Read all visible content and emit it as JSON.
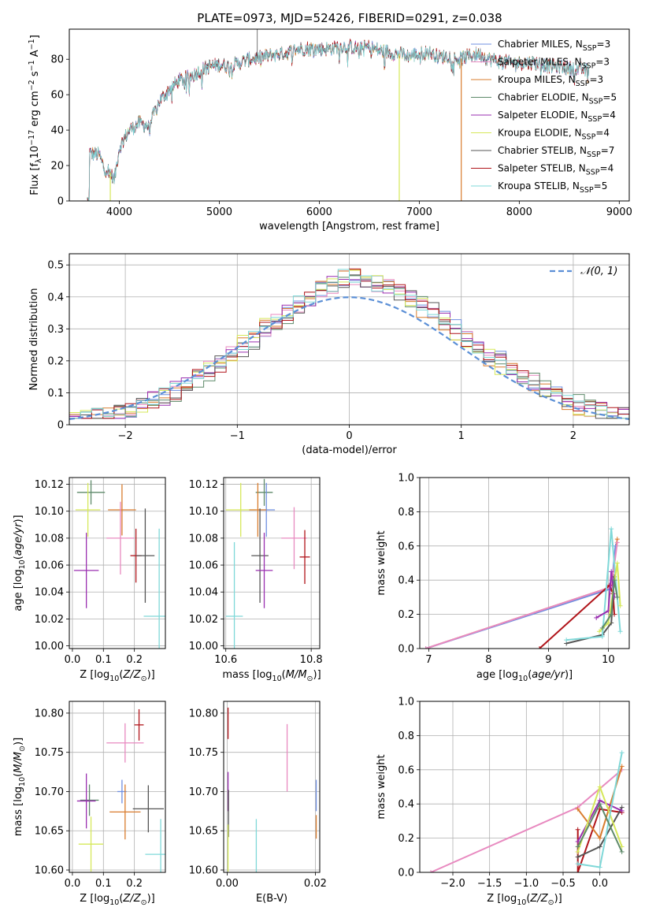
{
  "figure": {
    "title": "PLATE=0973, MJD=52426, FIBERID=0291, z=0.038"
  },
  "colors": {
    "chabrier_miles": "#6f8fe0",
    "salpeter_miles": "#e88ac0",
    "kroupa_miles": "#d97c2e",
    "chabrier_elodie": "#5e8a6a",
    "salpeter_elodie": "#9a2fb0",
    "kroupa_elodie": "#d6e85a",
    "chabrier_stelib": "#555555",
    "salpeter_stelib": "#b0141a",
    "kroupa_stelib": "#7fd8d8",
    "gaussian": "#5b8fd6"
  },
  "legend_spectrum": [
    "Chabrier MILES, N_SSP=3",
    "Salpeter MILES, N_SSP=3",
    "Kroupa MILES, N_SSP=3",
    "Chabrier ELODIE, N_SSP=5",
    "Salpeter ELODIE, N_SSP=4",
    "Kroupa ELODIE, N_SSP=4",
    "Chabrier STELIB, N_SSP=7",
    "Salpeter STELIB, N_SSP=4",
    "Kroupa STELIB, N_SSP=5"
  ],
  "legend_hist": "𝒩(0, 1)",
  "chart_data": [
    {
      "id": "spectrum",
      "type": "line",
      "xlabel": "wavelength [Angstrom, rest frame]",
      "ylabel": "Flux [f_λ 10^-17 erg cm^-2 s^-1 A^-1]",
      "xlim": [
        3500,
        9100
      ],
      "ylim": [
        0,
        97
      ],
      "xticks": [
        4000,
        5000,
        6000,
        7000,
        8000,
        9000
      ],
      "yticks": [
        0,
        20,
        40,
        60,
        80
      ],
      "continuum": [
        [
          3700,
          27
        ],
        [
          3800,
          26
        ],
        [
          3850,
          18
        ],
        [
          3900,
          17
        ],
        [
          3950,
          12
        ],
        [
          4000,
          30
        ],
        [
          4100,
          40
        ],
        [
          4200,
          44
        ],
        [
          4300,
          42
        ],
        [
          4350,
          50
        ],
        [
          4400,
          56
        ],
        [
          4500,
          63
        ],
        [
          4600,
          68
        ],
        [
          4700,
          70
        ],
        [
          4800,
          73
        ],
        [
          4900,
          76
        ],
        [
          5000,
          77
        ],
        [
          5100,
          76
        ],
        [
          5200,
          78
        ],
        [
          5300,
          80
        ],
        [
          5400,
          81
        ],
        [
          5500,
          82
        ],
        [
          5600,
          83
        ],
        [
          5700,
          84
        ],
        [
          5800,
          86
        ],
        [
          5900,
          86
        ],
        [
          6000,
          86
        ],
        [
          6100,
          86
        ],
        [
          6200,
          87
        ],
        [
          6300,
          87
        ],
        [
          6400,
          86
        ],
        [
          6500,
          87
        ],
        [
          6600,
          85
        ],
        [
          6700,
          84
        ],
        [
          6800,
          83
        ],
        [
          6900,
          82
        ],
        [
          7000,
          83
        ],
        [
          7100,
          84
        ],
        [
          7200,
          81
        ],
        [
          7300,
          82
        ],
        [
          7400,
          80
        ],
        [
          7500,
          82
        ],
        [
          7600,
          83
        ],
        [
          7700,
          80
        ],
        [
          7800,
          79
        ],
        [
          7900,
          78
        ],
        [
          8000,
          78
        ],
        [
          8100,
          78
        ],
        [
          8200,
          78
        ],
        [
          8300,
          76
        ],
        [
          8400,
          76
        ],
        [
          8500,
          75
        ],
        [
          8600,
          74
        ],
        [
          8700,
          74
        ]
      ],
      "drops": [
        [
          3910,
          0,
          "kroupa_elodie"
        ],
        [
          6800,
          0,
          "kroupa_elodie"
        ],
        [
          7420,
          0,
          "kroupa_miles"
        ]
      ],
      "spike": [
        5380,
        110
      ]
    },
    {
      "id": "residuals",
      "type": "histogram",
      "xlabel": "(data-model)/error",
      "ylabel": "Normed distribution",
      "xlim": [
        -2.5,
        2.5
      ],
      "ylim": [
        0,
        0.535
      ],
      "xticks": [
        -2,
        -1,
        0,
        1,
        2
      ],
      "yticks": [
        0.0,
        0.1,
        0.2,
        0.3,
        0.4,
        0.5
      ]
    },
    {
      "id": "age-vs-Z",
      "type": "scatter",
      "xlabel": "Z [log10(Z/Z⊙)]",
      "ylabel": "age  [log10(age/yr)]",
      "xlim": [
        -0.01,
        0.3
      ],
      "ylim": [
        9.998,
        10.125
      ],
      "xticks": [
        "0.0",
        "0.1",
        "0.2"
      ],
      "yticks": [
        "10.00",
        "10.02",
        "10.04",
        "10.06",
        "10.08",
        "10.10",
        "10.12"
      ],
      "points": [
        {
          "s": "chabrier_elodie",
          "x": 0.06,
          "y": 10.114,
          "ex": 0.045,
          "ey": 0.009
        },
        {
          "s": "kroupa_miles",
          "x": 0.16,
          "y": 10.101,
          "ex": 0.045,
          "ey": 0.019
        },
        {
          "s": "kroupa_elodie",
          "x": 0.05,
          "y": 10.101,
          "ex": 0.04,
          "ey": 0.02
        },
        {
          "s": "salpeter_miles",
          "x": 0.155,
          "y": 10.08,
          "ex": 0.045,
          "ey": 0.027
        },
        {
          "s": "salpeter_stelib",
          "x": 0.205,
          "y": 10.067,
          "ex": 0.018,
          "ey": 0.02
        },
        {
          "s": "chabrier_stelib",
          "x": 0.235,
          "y": 10.067,
          "ex": 0.03,
          "ey": 0.035
        },
        {
          "s": "salpeter_elodie",
          "x": 0.045,
          "y": 10.056,
          "ex": 0.04,
          "ey": 0.028
        },
        {
          "s": "kroupa_stelib",
          "x": 0.28,
          "y": 10.022,
          "ex": 0.05,
          "ey": 0.065
        }
      ]
    },
    {
      "id": "age-vs-mass",
      "type": "scatter",
      "xlabel": "mass [log10(M/M⊙)]",
      "ylabel": "",
      "xlim": [
        10.595,
        10.82
      ],
      "ylim": [
        9.998,
        10.125
      ],
      "xticks": [
        "10.6",
        "10.8"
      ],
      "yticks": [
        "10.00",
        "10.02",
        "10.04",
        "10.06",
        "10.08",
        "10.10",
        "10.12"
      ],
      "points": [
        {
          "s": "chabrier_elodie",
          "x": 10.69,
          "y": 10.114,
          "ex": 0.02,
          "ey": 0.01
        },
        {
          "s": "chabrier_miles",
          "x": 10.695,
          "y": 10.101,
          "ex": 0.02,
          "ey": 0.02
        },
        {
          "s": "kroupa_elodie",
          "x": 10.635,
          "y": 10.101,
          "ex": 0.035,
          "ey": 0.02
        },
        {
          "s": "kroupa_miles",
          "x": 10.675,
          "y": 10.101,
          "ex": 0.02,
          "ey": 0.02
        },
        {
          "s": "salpeter_miles",
          "x": 10.76,
          "y": 10.08,
          "ex": 0.03,
          "ey": 0.023
        },
        {
          "s": "chabrier_stelib",
          "x": 10.68,
          "y": 10.067,
          "ex": 0.02,
          "ey": 0.035
        },
        {
          "s": "salpeter_stelib",
          "x": 10.785,
          "y": 10.066,
          "ex": 0.012,
          "ey": 0.02
        },
        {
          "s": "salpeter_elodie",
          "x": 10.69,
          "y": 10.056,
          "ex": 0.02,
          "ey": 0.028
        },
        {
          "s": "kroupa_stelib",
          "x": 10.62,
          "y": 10.022,
          "ex": 0.02,
          "ey": 0.055
        }
      ]
    },
    {
      "id": "weight-vs-age",
      "type": "line",
      "xlabel": "age  [log10(age/yr)]",
      "ylabel": "mass weight",
      "xlim": [
        6.85,
        10.35
      ],
      "ylim": [
        0,
        1
      ],
      "xticks": [
        "7",
        "8",
        "9",
        "10"
      ],
      "yticks": [
        "0.0",
        "0.2",
        "0.4",
        "0.6",
        "0.8",
        "1.0"
      ]
    },
    {
      "id": "mass-vs-Z",
      "type": "scatter",
      "xlabel": "Z [log10(Z/Z⊙)]",
      "ylabel": "mass [log10(M/M⊙)]",
      "xlim": [
        -0.01,
        0.3
      ],
      "ylim": [
        10.597,
        10.815
      ],
      "xticks": [
        "0.0",
        "0.1",
        "0.2"
      ],
      "yticks": [
        "10.60",
        "10.65",
        "10.70",
        "10.75",
        "10.80"
      ],
      "points": [
        {
          "s": "salpeter_stelib",
          "x": 0.215,
          "y": 10.785,
          "ex": 0.015,
          "ey": 0.02
        },
        {
          "s": "salpeter_miles",
          "x": 0.17,
          "y": 10.762,
          "ex": 0.06,
          "ey": 0.025
        },
        {
          "s": "chabrier_miles",
          "x": 0.16,
          "y": 10.7,
          "ex": 0.015,
          "ey": 0.015
        },
        {
          "s": "chabrier_elodie",
          "x": 0.055,
          "y": 10.689,
          "ex": 0.03,
          "ey": 0.02
        },
        {
          "s": "salpeter_elodie",
          "x": 0.045,
          "y": 10.688,
          "ex": 0.03,
          "ey": 0.035
        },
        {
          "s": "chabrier_stelib",
          "x": 0.245,
          "y": 10.678,
          "ex": 0.05,
          "ey": 0.03
        },
        {
          "s": "kroupa_miles",
          "x": 0.17,
          "y": 10.674,
          "ex": 0.05,
          "ey": 0.035
        },
        {
          "s": "kroupa_elodie",
          "x": 0.06,
          "y": 10.633,
          "ex": 0.04,
          "ey": 0.035
        },
        {
          "s": "kroupa_stelib",
          "x": 0.285,
          "y": 10.62,
          "ex": 0.05,
          "ey": 0.045
        }
      ]
    },
    {
      "id": "mass-vs-ebv",
      "type": "scatter",
      "xlabel": "E(B-V)",
      "ylabel": "",
      "xlim": [
        -0.0008,
        0.021
      ],
      "ylim": [
        10.597,
        10.815
      ],
      "xticks": [
        "0.00",
        "0.02"
      ],
      "yticks": [
        "10.60",
        "10.65",
        "10.70",
        "10.75",
        "10.80"
      ],
      "points": [
        {
          "s": "salpeter_stelib",
          "x": 0.0002,
          "y": 10.787,
          "ex": 0,
          "ey": 0.02
        },
        {
          "s": "salpeter_miles",
          "x": 0.0136,
          "y": 10.743,
          "ex": 0,
          "ey": 0.043
        },
        {
          "s": "chabrier_miles",
          "x": 0.0202,
          "y": 10.695,
          "ex": 0,
          "ey": 0.02
        },
        {
          "s": "salpeter_elodie",
          "x": 0.0002,
          "y": 10.7,
          "ex": 0,
          "ey": 0.025
        },
        {
          "s": "chabrier_stelib",
          "x": 0.0003,
          "y": 10.672,
          "ex": 0,
          "ey": 0.03
        },
        {
          "s": "kroupa_miles",
          "x": 0.0202,
          "y": 10.655,
          "ex": 0,
          "ey": 0.015
        },
        {
          "s": "kroupa_stelib",
          "x": 0.0066,
          "y": 10.63,
          "ex": 0,
          "ey": 0.035
        },
        {
          "s": "kroupa_elodie",
          "x": 0.0002,
          "y": 10.628,
          "ex": 0,
          "ey": 0.03
        }
      ]
    },
    {
      "id": "weight-vs-Z",
      "type": "line",
      "xlabel": "Z [log10(Z/Z⊙)]",
      "ylabel": "mass weight",
      "xlim": [
        -2.45,
        0.4
      ],
      "ylim": [
        0,
        1
      ],
      "xticks": [
        "−2.0",
        "−1.5",
        "−1.0",
        "−0.5",
        "0.0"
      ],
      "yticks": [
        "0.0",
        "0.2",
        "0.4",
        "0.6",
        "0.8",
        "1.0"
      ]
    }
  ]
}
